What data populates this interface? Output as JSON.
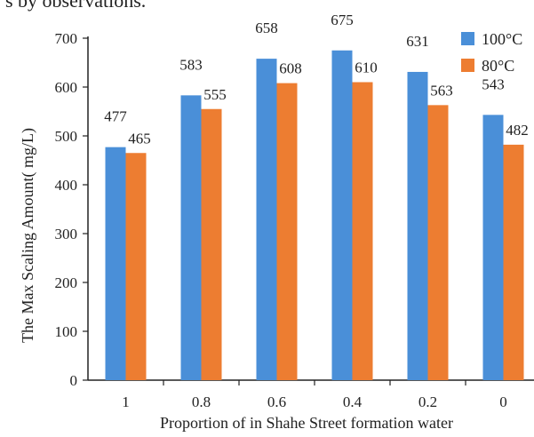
{
  "cut_text": "s by observations.",
  "chart_data": {
    "type": "bar",
    "categories": [
      "1",
      "0.8",
      "0.6",
      "0.4",
      "0.2",
      "0"
    ],
    "series": [
      {
        "name": "100°C",
        "values": [
          477,
          583,
          658,
          675,
          631,
          543
        ],
        "labels": [
          "477",
          "583",
          "658",
          "675",
          "631",
          "543"
        ],
        "color": "#4a8fd8"
      },
      {
        "name": "80°C",
        "values": [
          465,
          555,
          608,
          610,
          563,
          482
        ],
        "labels": [
          "465",
          "555",
          "608",
          "610",
          "563",
          "482"
        ],
        "color": "#ed7d31"
      }
    ],
    "yticks": [
      "0",
      "100",
      "200",
      "300",
      "400",
      "500",
      "600",
      "700"
    ],
    "ylim": [
      0,
      700
    ],
    "xlabel": "Proportion of in Shahe Street formation water",
    "ylabel": "The Max Scaling Amount( mg/L)",
    "legend_position": "top-right",
    "grid": false
  }
}
